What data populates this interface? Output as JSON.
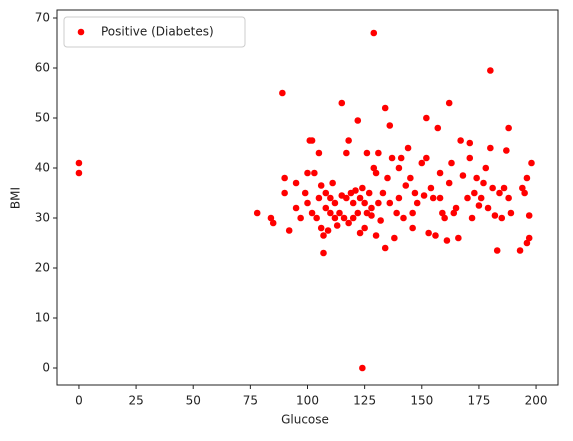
{
  "chart_data": {
    "type": "scatter",
    "xlabel": "Glucose",
    "ylabel": "BMI",
    "xlim": [
      -9.6,
      209.6
    ],
    "ylim": [
      -3.4,
      71.6
    ],
    "xticks": [
      0,
      25,
      50,
      75,
      100,
      125,
      150,
      175,
      200
    ],
    "yticks": [
      0,
      10,
      20,
      30,
      40,
      50,
      60,
      70
    ],
    "grid": false,
    "legend": "upper left",
    "series": [
      {
        "name": "Positive (Diabetes)",
        "color": "#ff0000",
        "x": [
          0,
          0,
          78,
          84,
          85,
          89,
          90,
          90,
          92,
          95,
          95,
          97,
          99,
          100,
          100,
          101,
          102,
          102,
          103,
          104,
          105,
          105,
          106,
          106,
          107,
          107,
          108,
          108,
          109,
          110,
          110,
          111,
          112,
          112,
          113,
          114,
          115,
          115,
          116,
          117,
          117,
          118,
          118,
          119,
          120,
          120,
          121,
          122,
          122,
          123,
          123,
          124,
          124,
          125,
          125,
          126,
          126,
          127,
          128,
          128,
          129,
          129,
          130,
          130,
          131,
          131,
          132,
          133,
          134,
          134,
          135,
          136,
          136,
          137,
          138,
          139,
          140,
          140,
          141,
          142,
          143,
          144,
          145,
          146,
          146,
          147,
          148,
          150,
          151,
          152,
          152,
          153,
          154,
          155,
          156,
          157,
          158,
          158,
          159,
          160,
          161,
          162,
          162,
          163,
          164,
          165,
          166,
          167,
          168,
          170,
          171,
          171,
          172,
          173,
          174,
          175,
          176,
          177,
          178,
          179,
          180,
          180,
          181,
          182,
          183,
          184,
          185,
          186,
          187,
          188,
          188,
          189,
          193,
          194,
          195,
          196,
          196,
          197,
          197,
          198
        ],
        "values": [
          41,
          39,
          31,
          30,
          29,
          55,
          38,
          35,
          27.5,
          37,
          32,
          30,
          35,
          39,
          33,
          45.5,
          45.5,
          31,
          39,
          30,
          43,
          34,
          28,
          36.5,
          23,
          26.5,
          32,
          35,
          27.5,
          34,
          31,
          37,
          30,
          33,
          28.5,
          31,
          53,
          34.5,
          30,
          34,
          43,
          45.5,
          29,
          35,
          30,
          33,
          35.5,
          49.5,
          31,
          34,
          27,
          0,
          36,
          33,
          28,
          43,
          31,
          35,
          32,
          30.5,
          67,
          40,
          26.5,
          39,
          43,
          33,
          29.5,
          35,
          52,
          24,
          38,
          48.5,
          33,
          42,
          26,
          31,
          40,
          34,
          42,
          30,
          36.5,
          44,
          38,
          31,
          28,
          35,
          33,
          41,
          34.5,
          50,
          42,
          27,
          36,
          34,
          26.5,
          48,
          34,
          39,
          31,
          30,
          25.5,
          53,
          37,
          41,
          31,
          32,
          26,
          45.5,
          38.5,
          34,
          45,
          42,
          30,
          35,
          38,
          32.5,
          34,
          37,
          40,
          32,
          59.5,
          44,
          36,
          30.5,
          23.5,
          35,
          30,
          36,
          43.5,
          48,
          34,
          31,
          23.5,
          36,
          35,
          25,
          38,
          26,
          30.5,
          41
        ]
      }
    ]
  }
}
